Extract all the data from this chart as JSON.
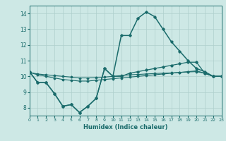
{
  "xlabel": "Humidex (Indice chaleur)",
  "xlim": [
    0,
    23
  ],
  "ylim": [
    7.5,
    14.5
  ],
  "yticks": [
    8,
    9,
    10,
    11,
    12,
    13,
    14
  ],
  "xticks": [
    0,
    1,
    2,
    3,
    4,
    5,
    6,
    7,
    8,
    9,
    10,
    11,
    12,
    13,
    14,
    15,
    16,
    17,
    18,
    19,
    20,
    21,
    22,
    23
  ],
  "bg_color": "#cde8e5",
  "line_color": "#1a6b6b",
  "grid_color": "#aecfcc",
  "line1_y": [
    10.3,
    9.6,
    9.6,
    8.9,
    8.1,
    8.2,
    7.7,
    8.1,
    8.6,
    10.5,
    10.0,
    10.0,
    10.2,
    10.3,
    10.4,
    10.5,
    10.6,
    10.7,
    10.8,
    10.9,
    10.9,
    10.2,
    10.0,
    10.0
  ],
  "line2_y": [
    10.3,
    9.6,
    9.6,
    8.9,
    8.1,
    8.2,
    7.7,
    8.1,
    8.6,
    10.5,
    10.0,
    12.6,
    12.6,
    13.7,
    14.1,
    13.8,
    13.0,
    12.2,
    11.6,
    11.0,
    10.5,
    10.3,
    10.0,
    10.0
  ],
  "line3_y": [
    10.25,
    10.1,
    10.0,
    9.9,
    9.8,
    9.75,
    9.7,
    9.7,
    9.75,
    9.8,
    9.85,
    9.9,
    9.95,
    10.0,
    10.05,
    10.1,
    10.15,
    10.2,
    10.25,
    10.3,
    10.35,
    10.2,
    10.0,
    10.0
  ],
  "line4_y": [
    10.25,
    10.15,
    10.1,
    10.05,
    10.0,
    9.95,
    9.9,
    9.9,
    9.92,
    9.95,
    10.0,
    10.05,
    10.1,
    10.12,
    10.15,
    10.18,
    10.2,
    10.22,
    10.25,
    10.28,
    10.3,
    10.2,
    10.0,
    10.0
  ]
}
